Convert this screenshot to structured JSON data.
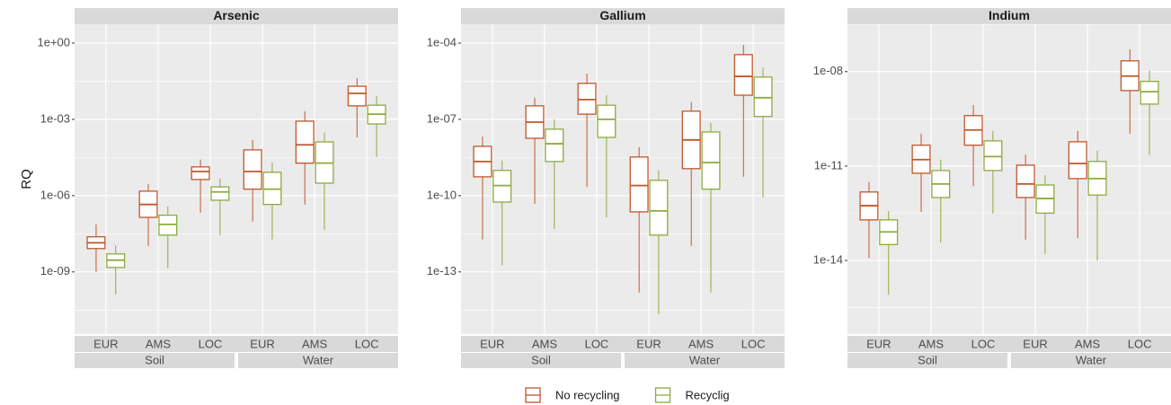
{
  "chart_data": [
    {
      "type": "box",
      "title": "Arsenic",
      "ylabel": "RQ",
      "log_y": true,
      "grid": true,
      "categories": [
        "EUR",
        "AMS",
        "LOC",
        "EUR",
        "AMS",
        "LOC"
      ],
      "groups": [
        "Soil",
        "Water"
      ],
      "ylim": [
        3.6e-12,
        5.5
      ],
      "yticks": [
        {
          "value": 1,
          "label": "1e+00"
        },
        {
          "value": 0.001,
          "label": "1e-03"
        },
        {
          "value": 1e-06,
          "label": "1e-06"
        },
        {
          "value": 1e-09,
          "label": "1e-09"
        }
      ],
      "series": [
        {
          "name": "No recycling",
          "color": "#c0562c",
          "values": [
            {
              "low": 1e-09,
              "q1": 8.3e-09,
              "median": 1.4e-08,
              "q3": 2.4e-08,
              "high": 7.4e-08
            },
            {
              "low": 1.05e-08,
              "q1": 1.4e-07,
              "median": 4.5e-07,
              "q3": 1.5e-06,
              "high": 2.9e-06
            },
            {
              "low": 2.1e-07,
              "q1": 4.3e-06,
              "median": 8.9e-06,
              "q3": 1.35e-05,
              "high": 2.6e-05
            },
            {
              "low": 9.5e-08,
              "q1": 1.8e-06,
              "median": 8.9e-06,
              "q3": 6.3e-05,
              "high": 0.000155
            },
            {
              "low": 4.5e-07,
              "q1": 1.9e-05,
              "median": 0.0001,
              "q3": 0.00085,
              "high": 0.0021
            },
            {
              "low": 0.000195,
              "q1": 0.0034,
              "median": 0.0105,
              "q3": 0.02,
              "high": 0.042
            }
          ]
        },
        {
          "name": "Recyclig",
          "color": "#8cab3e",
          "values": [
            {
              "low": 1.3e-10,
              "q1": 1.5e-09,
              "median": 2.9e-09,
              "q3": 5.1e-09,
              "high": 1.1e-08
            },
            {
              "low": 1.4e-09,
              "q1": 2.8e-08,
              "median": 7.4e-08,
              "q3": 1.7e-07,
              "high": 3.8e-07
            },
            {
              "low": 2.8e-08,
              "q1": 6.6e-07,
              "median": 1.4e-06,
              "q3": 2.2e-06,
              "high": 4.7e-06
            },
            {
              "low": 1.9e-08,
              "q1": 4.5e-07,
              "median": 1.8e-06,
              "q3": 8.3e-06,
              "high": 2e-05
            },
            {
              "low": 4.6e-08,
              "q1": 3.1e-06,
              "median": 1.9e-05,
              "q3": 0.00013,
              "high": 0.0003
            },
            {
              "low": 3.3e-05,
              "q1": 0.00066,
              "median": 0.0016,
              "q3": 0.0036,
              "high": 0.0083
            }
          ]
        }
      ]
    },
    {
      "type": "box",
      "title": "Gallium",
      "log_y": true,
      "grid": true,
      "categories": [
        "EUR",
        "AMS",
        "LOC",
        "EUR",
        "AMS",
        "LOC"
      ],
      "groups": [
        "Soil",
        "Water"
      ],
      "ylim": [
        3.6e-16,
        0.00055
      ],
      "yticks": [
        {
          "value": 0.0001,
          "label": "1e-04"
        },
        {
          "value": 1e-07,
          "label": "1e-07"
        },
        {
          "value": 1e-10,
          "label": "1e-10"
        },
        {
          "value": 1e-13,
          "label": "1e-13"
        }
      ],
      "series": [
        {
          "color": "#c0562c",
          "values": [
            {
              "low": 1.9e-12,
              "q1": 5.5e-10,
              "median": 2.2e-09,
              "q3": 8.7e-09,
              "high": 2.1e-08
            },
            {
              "low": 4.8e-11,
              "q1": 1.8e-08,
              "median": 7.8e-08,
              "q3": 3.4e-07,
              "high": 7.1e-07
            },
            {
              "low": 2.2e-10,
              "q1": 1.6e-07,
              "median": 6e-07,
              "q3": 2.6e-06,
              "high": 6.3e-06
            },
            {
              "low": 1.55e-14,
              "q1": 2.3e-11,
              "median": 2.5e-10,
              "q3": 3.3e-09,
              "high": 8.1e-09
            },
            {
              "low": 1.05e-12,
              "q1": 1.15e-09,
              "median": 1.55e-08,
              "q3": 2.1e-07,
              "high": 4.7e-07
            },
            {
              "low": 5.5e-10,
              "q1": 8.9e-07,
              "median": 4.9e-06,
              "q3": 3.5e-05,
              "high": 8.5e-05
            }
          ]
        },
        {
          "color": "#8cab3e",
          "values": [
            {
              "low": 1.8e-13,
              "q1": 5.6e-11,
              "median": 2.5e-10,
              "q3": 9.8e-10,
              "high": 2.4e-09
            },
            {
              "low": 4.9e-12,
              "q1": 2.2e-09,
              "median": 1.1e-08,
              "q3": 4.1e-08,
              "high": 1e-07
            },
            {
              "low": 1.4e-11,
              "q1": 1.95e-08,
              "median": 1e-07,
              "q3": 3.6e-07,
              "high": 8.9e-07
            },
            {
              "low": 2.2e-15,
              "q1": 2.8e-12,
              "median": 2.5e-11,
              "q3": 4e-10,
              "high": 9.8e-10
            },
            {
              "low": 1.55e-14,
              "q1": 1.8e-10,
              "median": 2e-09,
              "q3": 3.2e-08,
              "high": 7.2e-08
            },
            {
              "low": 8.5e-11,
              "q1": 1.3e-07,
              "median": 7.1e-07,
              "q3": 4.6e-06,
              "high": 1.1e-05
            }
          ]
        }
      ]
    },
    {
      "type": "box",
      "title": "Indium",
      "log_y": true,
      "grid": true,
      "categories": [
        "EUR",
        "AMS",
        "LOC",
        "EUR",
        "AMS",
        "LOC"
      ],
      "groups": [
        "Soil",
        "Water"
      ],
      "ylim": [
        4.6e-17,
        3.2e-07
      ],
      "yticks": [
        {
          "value": 1e-08,
          "label": "1e-08"
        },
        {
          "value": 1e-11,
          "label": "1e-11"
        },
        {
          "value": 1e-14,
          "label": "1e-14"
        }
      ],
      "series": [
        {
          "color": "#c0562c",
          "values": [
            {
              "low": 1.2e-14,
              "q1": 1.95e-13,
              "median": 5.5e-13,
              "q3": 1.5e-12,
              "high": 3.1e-12
            },
            {
              "low": 3.5e-13,
              "q1": 5.9e-12,
              "median": 1.6e-11,
              "q3": 4.6e-11,
              "high": 1.07e-10
            },
            {
              "low": 2.3e-12,
              "q1": 4.6e-11,
              "median": 1.4e-10,
              "q3": 4e-10,
              "high": 8.7e-10
            },
            {
              "low": 4.6e-14,
              "q1": 1e-12,
              "median": 2.7e-12,
              "q3": 1.07e-11,
              "high": 2.3e-11
            },
            {
              "low": 5.1e-14,
              "q1": 4e-12,
              "median": 1.2e-11,
              "q3": 5.9e-11,
              "high": 1.3e-10
            },
            {
              "low": 1.07e-10,
              "q1": 2.5e-09,
              "median": 7.2e-09,
              "q3": 2.2e-08,
              "high": 5.1e-08
            }
          ]
        },
        {
          "color": "#8cab3e",
          "values": [
            {
              "low": 8.1e-16,
              "q1": 3.2e-14,
              "median": 8.1e-14,
              "q3": 1.95e-13,
              "high": 3.7e-13
            },
            {
              "low": 3.7e-14,
              "q1": 1e-12,
              "median": 2.7e-12,
              "q3": 7.2e-12,
              "high": 1.6e-11
            },
            {
              "low": 3.1e-13,
              "q1": 7.2e-12,
              "median": 2e-11,
              "q3": 6.3e-11,
              "high": 1.3e-10
            },
            {
              "low": 1.6e-14,
              "q1": 3.2e-13,
              "median": 9.3e-13,
              "q3": 2.5e-12,
              "high": 5.1e-12
            },
            {
              "low": 1e-14,
              "q1": 1.2e-12,
              "median": 4e-12,
              "q3": 1.4e-11,
              "high": 3.1e-11
            },
            {
              "low": 2.3e-11,
              "q1": 9.3e-10,
              "median": 2.3e-09,
              "q3": 4.9e-09,
              "high": 1.07e-08
            }
          ]
        }
      ]
    }
  ]
}
